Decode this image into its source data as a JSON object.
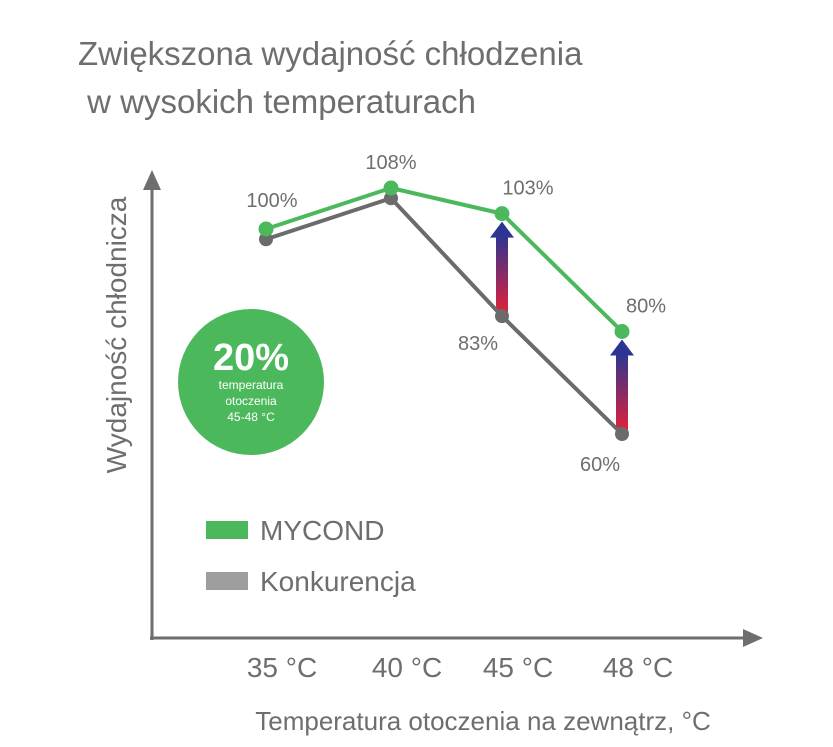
{
  "title_lines": [
    "Zwiększona wydajność chłodzenia",
    " w wysokich temperaturach"
  ],
  "chart_data": {
    "type": "line",
    "title": "Zwiększona wydajność chłodzenia w wysokich temperaturach",
    "xlabel": "Temperatura otoczenia na zewnątrz, °C",
    "ylabel": "Wydajność chłodnicza",
    "categories": [
      "35 °C",
      "40 °C",
      "45 °C",
      "48 °C"
    ],
    "series": [
      {
        "name": "MYCOND",
        "values": [
          100,
          108,
          103,
          80
        ],
        "labels": [
          "100%",
          "108%",
          "103%",
          "80%"
        ],
        "color": "#4cb85c"
      },
      {
        "name": "Konkurencja",
        "values": [
          98,
          106,
          83,
          60
        ],
        "labels": [
          "",
          "",
          "83%",
          "60%"
        ],
        "color": "#6b6b6b"
      }
    ],
    "ylim": [
      50,
      120
    ],
    "grid": false,
    "legend": "bottom-left"
  },
  "badge": {
    "value": "20%",
    "line1": "temperatura",
    "line2": "otoczenia",
    "line3": "45-48 °C",
    "color": "#4cb85c"
  },
  "colors": {
    "axis": "#6e6e6e",
    "legend_competitor": "#9e9e9e",
    "arrow_top": "#2d3592",
    "arrow_bottom": "#e0223a"
  }
}
